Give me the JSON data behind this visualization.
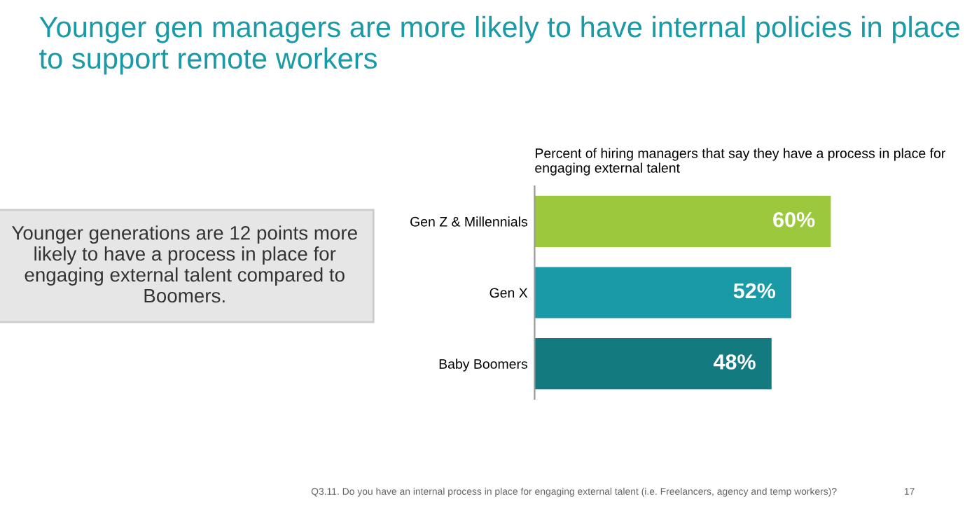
{
  "chart_data": {
    "type": "bar",
    "orientation": "horizontal",
    "title": "Younger gen managers are more likely to have internal policies in place to support remote workers",
    "subtitle": "Percent of hiring managers that say they have a process in place for engaging external talent",
    "categories": [
      "Gen Z & Millennials",
      "Gen X",
      "Baby Boomers"
    ],
    "values": [
      60,
      52,
      48
    ],
    "colors": [
      "#9bc83c",
      "#1a9aa6",
      "#137a80"
    ],
    "value_labels": [
      "60%",
      "52%",
      "48%"
    ],
    "tick_labels": "y",
    "grid": false,
    "legend": false,
    "annotations": [
      "Younger generations are 12 points more likely to have a process in place for engaging external talent compared to Boomers.",
      "Q3.11. Do you have an internal process in place for engaging external talent (i.e. Freelancers, agency and temp workers)?",
      "17"
    ]
  }
}
